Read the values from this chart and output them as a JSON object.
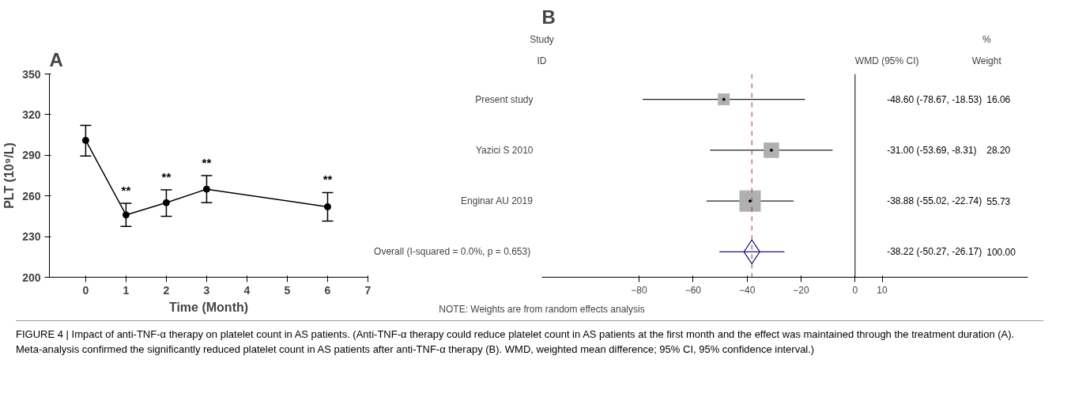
{
  "chart_data": [
    {
      "type": "line",
      "title": "A",
      "xlabel": "Time (Month)",
      "ylabel": "PLT (10⁹/L)",
      "marker": "circle",
      "xlim": [
        -0.9,
        7
      ],
      "xticks": [
        0,
        1,
        2,
        3,
        4,
        5,
        6,
        7
      ],
      "ylim": [
        200,
        350
      ],
      "yticks": [
        200,
        230,
        260,
        290,
        320,
        350
      ],
      "series": [
        {
          "color": "#000000",
          "x": [
            0,
            1,
            2,
            3,
            6
          ],
          "values": [
            301,
            246,
            255,
            265,
            252
          ],
          "errors": [
            [
              289.5,
              312
            ],
            [
              237.5,
              254.5
            ],
            [
              245,
              264.5
            ],
            [
              255,
              275
            ],
            [
              241.5,
              262.5
            ]
          ]
        }
      ],
      "annotations": [
        {
          "text": "**",
          "x": 1,
          "y": 254.5
        },
        {
          "text": "**",
          "x": 2,
          "y": 264.5
        },
        {
          "text": "**",
          "x": 3,
          "y": 275
        },
        {
          "text": "**",
          "x": 6,
          "y": 262.5
        },
        "FIGURE 4 | Impact of anti-TNF-α therapy on platelet count in AS patients. (Anti-TNF-α therapy could reduce platelet count in AS patients at the first month and the effect was maintained through the treatment duration (A). Meta-analysis confirmed the significantly reduced platelet count in AS patients after anti-TNF-α therapy (B). WMD, weighted mean difference; 95% CI, 95% confidence interval.)"
      ]
    },
    {
      "type": "scatter",
      "title": "B",
      "orientation": "horizontal",
      "categories": [
        "Present study",
        "Yazici S 2010",
        "Enginar AU 2019",
        "Overall  (I-squared = 0.0%, p = 0.653)"
      ],
      "xlim": [
        -116,
        64
      ],
      "xticks": [
        -80,
        -60,
        -40,
        -20,
        0,
        10
      ],
      "series": [
        {
          "type": "bubble",
          "marker": "square",
          "color": "#b0b0b0",
          "values": [
            -48.6,
            -31.0,
            -38.88,
            null
          ],
          "sizes": [
            0.288,
            0.506,
            1,
            null
          ],
          "errors": [
            [
              -78.67,
              -18.53
            ],
            [
              -53.69,
              -8.31
            ],
            [
              -55.02,
              -22.74
            ],
            null
          ]
        },
        {
          "type": "scatter",
          "marker": "diamond",
          "color": "#1a1a80",
          "values": [
            null,
            null,
            null,
            -38.22
          ],
          "errors": [
            null,
            null,
            null,
            [
              -50.27,
              -26.17
            ]
          ]
        }
      ],
      "ref_lines": [
        {
          "axis": "x",
          "value": 0,
          "color": "#000000",
          "line_style": "solid"
        },
        {
          "axis": "x",
          "value": -38.22,
          "color": "#a03030",
          "line_style": "dashed"
        }
      ],
      "annotations": [
        "Study",
        "ID",
        "WMD (95% CI)",
        "%",
        "Weight",
        "-48.60 (-78.67, -18.53)",
        "-31.00 (-53.69, -8.31)",
        "-38.88 (-55.02, -22.74)",
        "-38.22 (-50.27, -26.17)",
        "16.06",
        "28.20",
        "55.73",
        "100.00",
        "NOTE: Weights are from random effects analysis"
      ]
    }
  ]
}
